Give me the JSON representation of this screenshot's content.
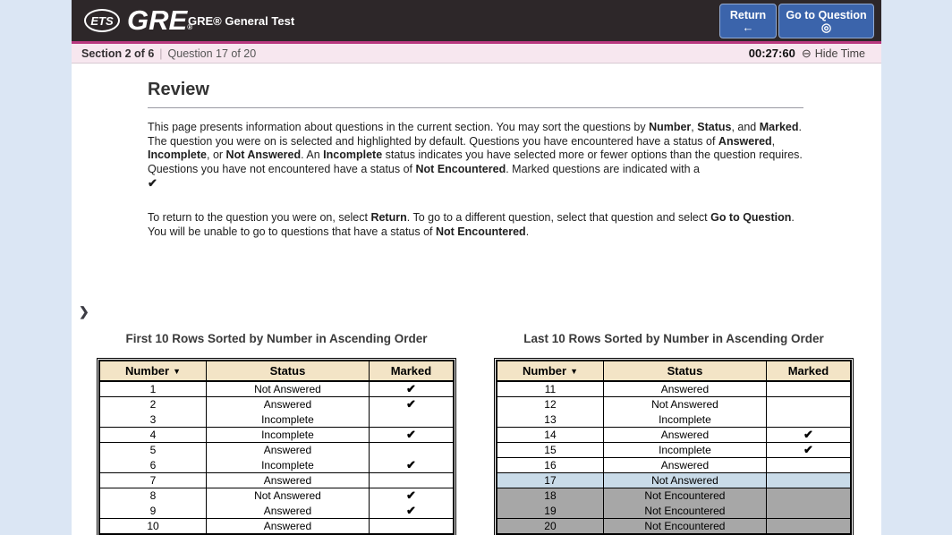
{
  "header": {
    "ets_logo": "ETS",
    "gre_logo": "GRE",
    "registered": "®",
    "product_title": "GRE® General Test",
    "return_button": "Return",
    "return_icon": "←",
    "goto_button": "Go to Question",
    "goto_icon": "◎"
  },
  "statusbar": {
    "section": "Section 2 of 6",
    "separator": "|",
    "question": "Question 17 of 20",
    "timer": "00:27:60",
    "hide_time_icon": "⊖",
    "hide_time": "Hide Time"
  },
  "review": {
    "title": "Review",
    "chevron": "❯",
    "p1": [
      "This page presents information about questions in the current section. You may sort the questions by ",
      "Number",
      ", ",
      "Status",
      ", and ",
      "Marked",
      ". The question you were on is selected and highlighted by default. Questions you have encountered have a status of ",
      "Answered",
      ", ",
      "Incomplete",
      ", or ",
      "Not Answered",
      ". An ",
      "Incomplete",
      " status indicates you have selected more or fewer options than the question requires. Questions you have not encountered have a status of ",
      "Not Encountered",
      ". Marked questions are indicated with a ",
      "✔"
    ],
    "p2": [
      "To return to the question you were on, select ",
      "Return",
      ". To go to a different question, select that question and select ",
      "Go to Question",
      ". You will be unable to go to questions that have a status of ",
      "Not Encountered",
      "."
    ]
  },
  "tables": [
    {
      "title": "First 10 Rows Sorted by Number in Ascending Order",
      "headers": {
        "number": "Number",
        "status": "Status",
        "marked": "Marked"
      },
      "sort_arrow": "▼",
      "rows": [
        {
          "number": "1",
          "status": "Not Answered",
          "marked": "✔",
          "state": ""
        },
        {
          "number": "2",
          "status": "Answered",
          "marked": "✔",
          "state": ""
        },
        {
          "number": "3",
          "status": "Incomplete",
          "marked": "",
          "state": ""
        },
        {
          "number": "4",
          "status": "Incomplete",
          "marked": "✔",
          "state": ""
        },
        {
          "number": "5",
          "status": "Answered",
          "marked": "",
          "state": ""
        },
        {
          "number": "6",
          "status": "Incomplete",
          "marked": "✔",
          "state": ""
        },
        {
          "number": "7",
          "status": "Answered",
          "marked": "",
          "state": ""
        },
        {
          "number": "8",
          "status": "Not Answered",
          "marked": "✔",
          "state": ""
        },
        {
          "number": "9",
          "status": "Answered",
          "marked": "✔",
          "state": ""
        },
        {
          "number": "10",
          "status": "Answered",
          "marked": "",
          "state": ""
        }
      ]
    },
    {
      "title": "Last 10 Rows Sorted by Number in Ascending Order",
      "headers": {
        "number": "Number",
        "status": "Status",
        "marked": "Marked"
      },
      "sort_arrow": "▼",
      "rows": [
        {
          "number": "11",
          "status": "Answered",
          "marked": "",
          "state": ""
        },
        {
          "number": "12",
          "status": "Not Answered",
          "marked": "",
          "state": ""
        },
        {
          "number": "13",
          "status": "Incomplete",
          "marked": "",
          "state": ""
        },
        {
          "number": "14",
          "status": "Answered",
          "marked": "✔",
          "state": ""
        },
        {
          "number": "15",
          "status": "Incomplete",
          "marked": "✔",
          "state": ""
        },
        {
          "number": "16",
          "status": "Answered",
          "marked": "",
          "state": ""
        },
        {
          "number": "17",
          "status": "Not Answered",
          "marked": "",
          "state": "selected"
        },
        {
          "number": "18",
          "status": "Not Encountered",
          "marked": "",
          "state": "disabled"
        },
        {
          "number": "19",
          "status": "Not Encountered",
          "marked": "",
          "state": "disabled"
        },
        {
          "number": "20",
          "status": "Not Encountered",
          "marked": "",
          "state": "disabled"
        }
      ]
    }
  ],
  "colors": {
    "page_bg": "#dbe6f4",
    "topbar_bg": "#2d2729",
    "pink_line": "#b9387f",
    "statusbar_bg": "#f7e7ef",
    "button_bg": "#3b64ab",
    "table_header_bg": "#f3e4c6",
    "selected_row_bg": "#c9dbe8",
    "disabled_row_bg": "#a7a7a7"
  }
}
